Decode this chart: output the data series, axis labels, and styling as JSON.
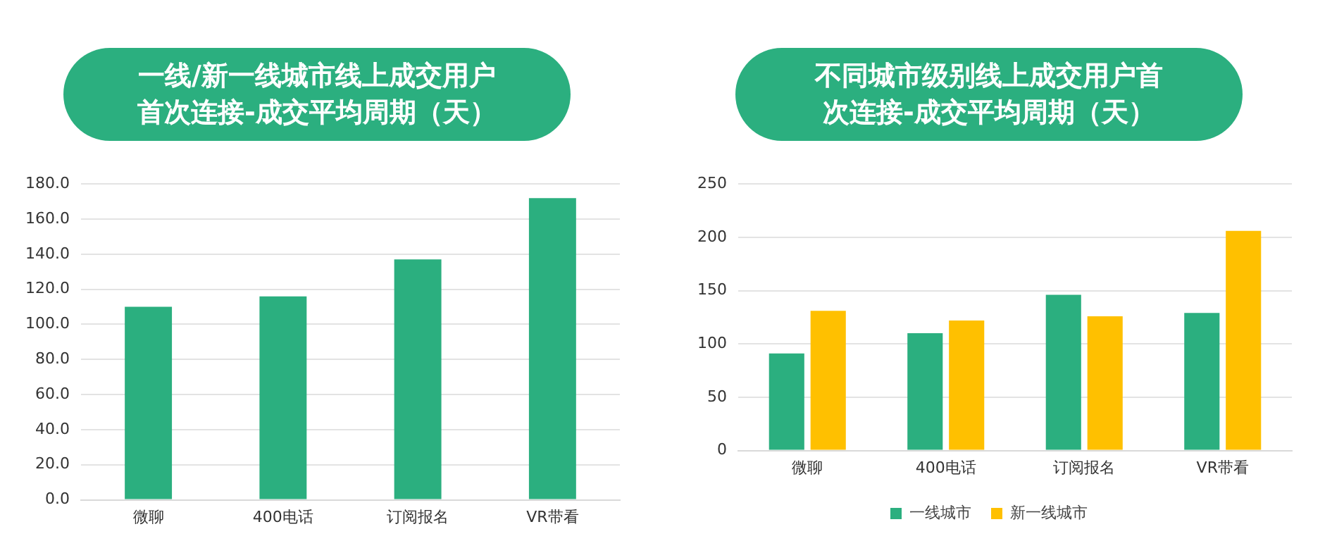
{
  "chart_data": [
    {
      "type": "bar",
      "title": "一线/新一线城市线上成交用户首次连接-成交平均周期（天）",
      "categories": [
        "微聊",
        "400电话",
        "订阅报名",
        "VR带看"
      ],
      "series": [
        {
          "color": "#2baf7f",
          "values": [
            110,
            116,
            137,
            172
          ]
        }
      ],
      "ylim": [
        0,
        180
      ],
      "yticks": [
        {
          "value": 0,
          "label": "0.0"
        },
        {
          "value": 20,
          "label": "20.0"
        },
        {
          "value": 40,
          "label": "40.0"
        },
        {
          "value": 60,
          "label": "60.0"
        },
        {
          "value": 80,
          "label": "80.0"
        },
        {
          "value": 100,
          "label": "100.0"
        },
        {
          "value": 120,
          "label": "120.0"
        },
        {
          "value": 140,
          "label": "140.0"
        },
        {
          "value": 160,
          "label": "160.0"
        },
        {
          "value": 180,
          "label": "180.0"
        }
      ],
      "grid": "y"
    },
    {
      "type": "bar",
      "title": "不同城市级别线上成交用户首次连接-成交平均周期（天）",
      "categories": [
        "微聊",
        "400电话",
        "订阅报名",
        "VR带看"
      ],
      "series": [
        {
          "name": "一线城市",
          "color": "#2baf7f",
          "values": [
            91,
            110,
            146,
            129
          ]
        },
        {
          "name": "新一线城市",
          "color": "#ffc000",
          "values": [
            131,
            122,
            126,
            206
          ]
        }
      ],
      "ylim": [
        0,
        250
      ],
      "yticks": [
        0,
        50,
        100,
        150,
        200,
        250
      ],
      "grid": "y",
      "legend": "bottom"
    }
  ]
}
